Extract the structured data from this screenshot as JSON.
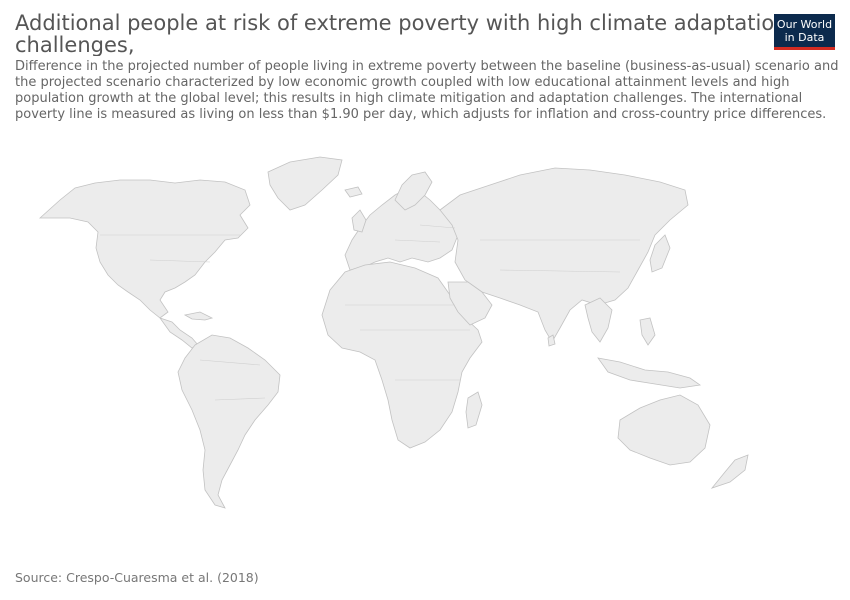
{
  "title": {
    "line1": "Additional people at risk of extreme poverty with high climate adaptation",
    "line2": "challenges,"
  },
  "subtitle": {
    "line1": "Difference in the projected number of people living in extreme poverty between the baseline (business-as-usual) scenario and",
    "line2": "the projected scenario characterized by low economic growth coupled with low educational attainment levels and high",
    "line3": "population growth at the global level; this results in high climate mitigation and adaptation challenges. The international",
    "line4": "poverty line is measured as living on less than $1.90 per day, which adjusts for inflation and cross-country price differences."
  },
  "logo": {
    "line1": "Our World",
    "line2": "in Data",
    "bg_color": "#0c2a4d",
    "accent_color": "#d42b21"
  },
  "map": {
    "land_color": "#ececec",
    "border_color": "#c2c2c2"
  },
  "source": "Source: Crespo-Cuaresma et al. (2018)"
}
